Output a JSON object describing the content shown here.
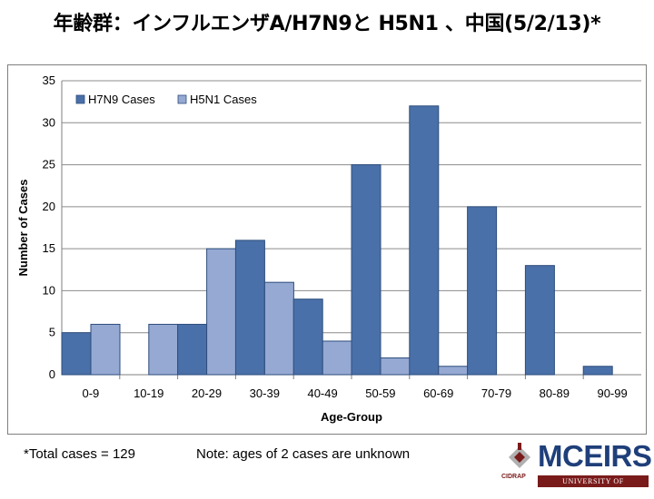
{
  "title": "年齢群：インフルエンザA/H7N9と H5N1 、中国(5/2/13)*",
  "chart_data": {
    "type": "bar",
    "categories": [
      "0-9",
      "10-19",
      "20-29",
      "30-39",
      "40-49",
      "50-59",
      "60-69",
      "70-79",
      "80-89",
      "90-99"
    ],
    "series": [
      {
        "name": "H7N9 Cases",
        "values": [
          5,
          0,
          6,
          16,
          9,
          25,
          32,
          20,
          13,
          1
        ],
        "color": "#4a70a9"
      },
      {
        "name": "H5N1 Cases",
        "values": [
          6,
          6,
          15,
          11,
          4,
          2,
          1,
          0,
          0,
          0
        ],
        "color": "#95a9d3"
      }
    ],
    "xlabel": "Age-Group",
    "ylabel": "Number of Cases",
    "ylim": [
      0,
      35
    ],
    "yticks": [
      0,
      5,
      10,
      15,
      20,
      25,
      30,
      35
    ],
    "grid": true,
    "legend_position": "top-left"
  },
  "footnotes": {
    "total": "*Total cases = 129",
    "note": "Note: ages of 2 cases are unknown"
  },
  "logo": {
    "text": "MCEIRS",
    "subtitle": "UNIVERSITY OF MINNESOTA",
    "caption": "CIDRAP"
  }
}
